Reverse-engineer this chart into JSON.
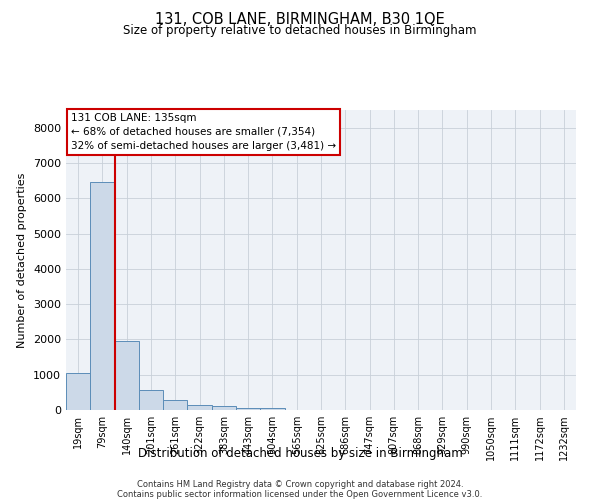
{
  "title": "131, COB LANE, BIRMINGHAM, B30 1QE",
  "subtitle": "Size of property relative to detached houses in Birmingham",
  "xlabel": "Distribution of detached houses by size in Birmingham",
  "ylabel": "Number of detached properties",
  "footnote1": "Contains HM Land Registry data © Crown copyright and database right 2024.",
  "footnote2": "Contains public sector information licensed under the Open Government Licence v3.0.",
  "annotation_title": "131 COB LANE: 135sqm",
  "annotation_line1": "← 68% of detached houses are smaller (7,354)",
  "annotation_line2": "32% of semi-detached houses are larger (3,481) →",
  "bar_color": "#ccd9e8",
  "bar_edge_color": "#5b8db8",
  "vline_color": "#cc0000",
  "annotation_box_edgecolor": "#cc0000",
  "categories": [
    "19sqm",
    "79sqm",
    "140sqm",
    "201sqm",
    "261sqm",
    "322sqm",
    "383sqm",
    "443sqm",
    "504sqm",
    "565sqm",
    "625sqm",
    "686sqm",
    "747sqm",
    "807sqm",
    "868sqm",
    "929sqm",
    "990sqm",
    "1050sqm",
    "1111sqm",
    "1172sqm",
    "1232sqm"
  ],
  "values": [
    1050,
    6450,
    1950,
    570,
    270,
    130,
    100,
    70,
    50,
    10,
    0,
    0,
    0,
    0,
    0,
    0,
    0,
    0,
    0,
    0,
    0
  ],
  "ylim": [
    0,
    8500
  ],
  "yticks": [
    0,
    1000,
    2000,
    3000,
    4000,
    5000,
    6000,
    7000,
    8000
  ],
  "vline_x": 1.5,
  "grid_color": "#c8d0d8",
  "background_color": "#eef2f7"
}
